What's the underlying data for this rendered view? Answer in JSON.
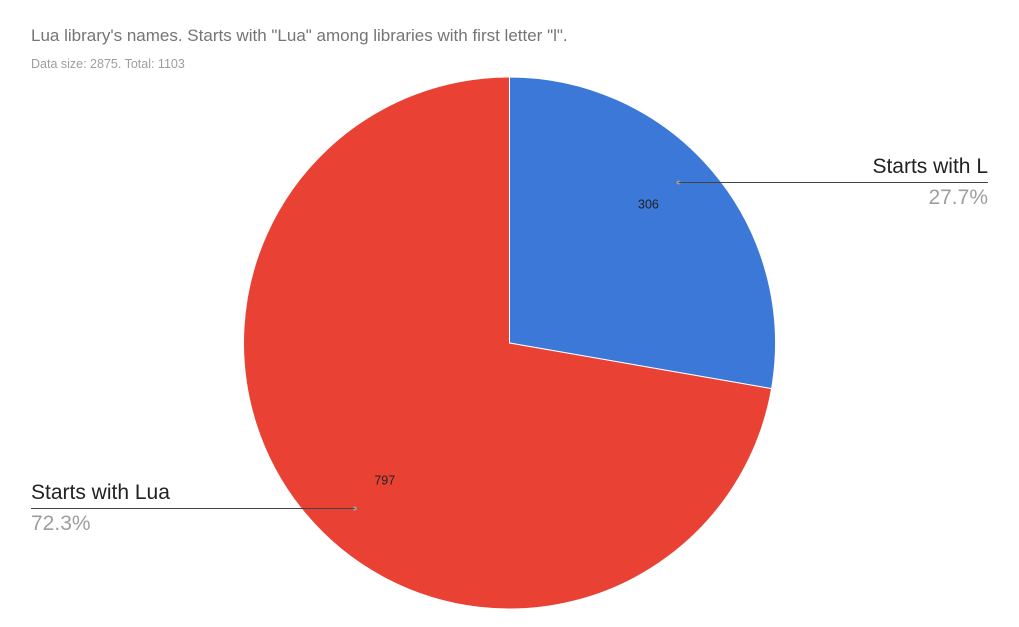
{
  "chart_data": {
    "type": "pie",
    "title": "Lua library's names. Starts with \"Lua\" among libraries with first letter \"l\".",
    "subtitle": "Data size: 2875. Total: 1103",
    "slices": [
      {
        "label": "Starts with L",
        "value": 306,
        "percent_label": "27.7%",
        "color": "#3c78d8"
      },
      {
        "label": "Starts with Lua",
        "value": 797,
        "percent_label": "72.3%",
        "color": "#e94235"
      }
    ]
  }
}
